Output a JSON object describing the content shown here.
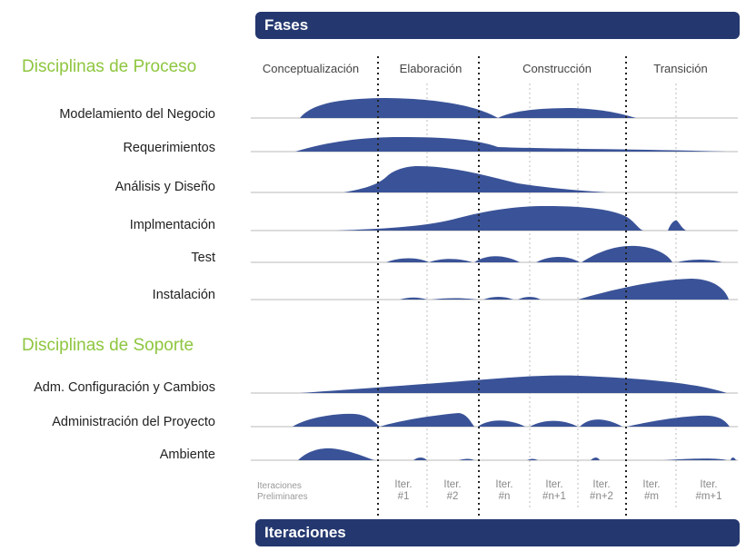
{
  "header": {
    "title": "Fases"
  },
  "footer": {
    "title": "Iteraciones"
  },
  "sections": {
    "process": "Disciplinas de Proceso",
    "support": "Disciplinas de Soporte"
  },
  "phases": [
    "Conceptualización",
    "Elaboración",
    "Construcción",
    "Transición"
  ],
  "disciplines": {
    "process": [
      "Modelamiento del Negocio",
      "Requerimientos",
      "Análisis y Diseño",
      "Implmentación",
      "Test",
      "Instalación"
    ],
    "support": [
      "Adm. Configuración y Cambios",
      "Administración del Proyecto",
      "Ambiente"
    ]
  },
  "iterations": {
    "preliminary": "Iteraciones\nPreliminares",
    "labels": [
      "Iter.\n#1",
      "Iter.\n#2",
      "Iter.\n#n",
      "Iter.\n#n+1",
      "Iter.\n#n+2",
      "Iter.\n#m",
      "Iter.\n#m+1"
    ]
  },
  "colors": {
    "header_bg": "#24386f",
    "hump": "#3a5398",
    "section_title": "#8ec63f",
    "baseline": "#b9b9b9",
    "divider": "#222222",
    "iter_divider": "#bdbdbd"
  }
}
